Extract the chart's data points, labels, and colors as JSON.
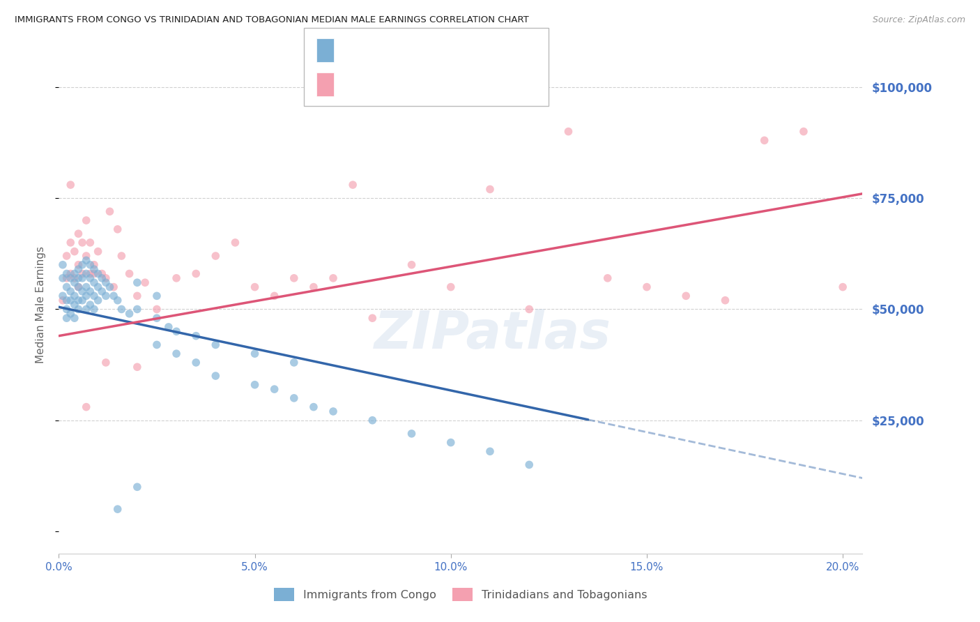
{
  "title": "IMMIGRANTS FROM CONGO VS TRINIDADIAN AND TOBAGONIAN MEDIAN MALE EARNINGS CORRELATION CHART",
  "source": "Source: ZipAtlas.com",
  "xlabel_ticks": [
    "0.0%",
    "5.0%",
    "10.0%",
    "15.0%",
    "20.0%"
  ],
  "xlabel_tick_vals": [
    0.0,
    0.05,
    0.1,
    0.15,
    0.2
  ],
  "ylabel": "Median Male Earnings",
  "ylabel_ticks": [
    0,
    25000,
    50000,
    75000,
    100000
  ],
  "ylabel_tick_labels": [
    "",
    "$25,000",
    "$50,000",
    "$75,000",
    "$100,000"
  ],
  "xlim": [
    0.0,
    0.205
  ],
  "ylim": [
    -5000,
    107000
  ],
  "watermark_text": "ZIPatlas",
  "background_color": "#ffffff",
  "grid_color": "#d0d0d0",
  "scatter_alpha": 0.65,
  "scatter_size": 70,
  "blue_color": "#7bafd4",
  "pink_color": "#f4a0b0",
  "blue_line_color": "#3366aa",
  "pink_line_color": "#dd5577",
  "axis_label_color": "#4472c4",
  "blue_line_solid_end": 0.135,
  "blue_line_x0": 0.0,
  "blue_line_y0": 50500,
  "blue_line_x1": 0.205,
  "blue_line_y1": 12000,
  "pink_line_x0": 0.0,
  "pink_line_y0": 44000,
  "pink_line_x1": 0.205,
  "pink_line_y1": 76000,
  "blue_scatter_x": [
    0.001,
    0.001,
    0.001,
    0.002,
    0.002,
    0.002,
    0.002,
    0.002,
    0.003,
    0.003,
    0.003,
    0.003,
    0.004,
    0.004,
    0.004,
    0.004,
    0.004,
    0.005,
    0.005,
    0.005,
    0.005,
    0.005,
    0.006,
    0.006,
    0.006,
    0.006,
    0.007,
    0.007,
    0.007,
    0.007,
    0.007,
    0.008,
    0.008,
    0.008,
    0.008,
    0.009,
    0.009,
    0.009,
    0.009,
    0.01,
    0.01,
    0.01,
    0.011,
    0.011,
    0.012,
    0.012,
    0.013,
    0.014,
    0.015,
    0.016,
    0.018,
    0.02,
    0.025,
    0.028,
    0.03,
    0.035,
    0.04,
    0.05,
    0.06,
    0.025,
    0.03,
    0.035,
    0.04,
    0.05,
    0.055,
    0.06,
    0.065,
    0.07,
    0.08,
    0.09,
    0.1,
    0.11,
    0.12,
    0.02,
    0.025,
    0.02,
    0.015
  ],
  "blue_scatter_y": [
    60000,
    57000,
    53000,
    58000,
    55000,
    52000,
    50000,
    48000,
    57000,
    54000,
    52000,
    49000,
    58000,
    56000,
    53000,
    51000,
    48000,
    59000,
    57000,
    55000,
    52000,
    50000,
    60000,
    57000,
    54000,
    52000,
    61000,
    58000,
    55000,
    53000,
    50000,
    60000,
    57000,
    54000,
    51000,
    59000,
    56000,
    53000,
    50000,
    58000,
    55000,
    52000,
    57000,
    54000,
    56000,
    53000,
    55000,
    53000,
    52000,
    50000,
    49000,
    50000,
    48000,
    46000,
    45000,
    44000,
    42000,
    40000,
    38000,
    42000,
    40000,
    38000,
    35000,
    33000,
    32000,
    30000,
    28000,
    27000,
    25000,
    22000,
    20000,
    18000,
    15000,
    56000,
    53000,
    10000,
    5000
  ],
  "pink_scatter_x": [
    0.001,
    0.002,
    0.002,
    0.003,
    0.003,
    0.004,
    0.004,
    0.005,
    0.005,
    0.006,
    0.006,
    0.007,
    0.007,
    0.008,
    0.008,
    0.009,
    0.01,
    0.011,
    0.012,
    0.013,
    0.014,
    0.015,
    0.016,
    0.018,
    0.02,
    0.022,
    0.025,
    0.03,
    0.035,
    0.04,
    0.045,
    0.05,
    0.055,
    0.06,
    0.065,
    0.07,
    0.075,
    0.08,
    0.09,
    0.1,
    0.11,
    0.12,
    0.13,
    0.14,
    0.15,
    0.16,
    0.17,
    0.18,
    0.19,
    0.2,
    0.003,
    0.005,
    0.007,
    0.009,
    0.012,
    0.02
  ],
  "pink_scatter_y": [
    52000,
    62000,
    57000,
    65000,
    58000,
    63000,
    57000,
    67000,
    60000,
    65000,
    58000,
    70000,
    62000,
    65000,
    58000,
    60000,
    63000,
    58000,
    57000,
    72000,
    55000,
    68000,
    62000,
    58000,
    53000,
    56000,
    50000,
    57000,
    58000,
    62000,
    65000,
    55000,
    53000,
    57000,
    55000,
    57000,
    78000,
    48000,
    60000,
    55000,
    77000,
    50000,
    90000,
    57000,
    55000,
    53000,
    52000,
    88000,
    90000,
    55000,
    78000,
    55000,
    28000,
    58000,
    38000,
    37000
  ]
}
